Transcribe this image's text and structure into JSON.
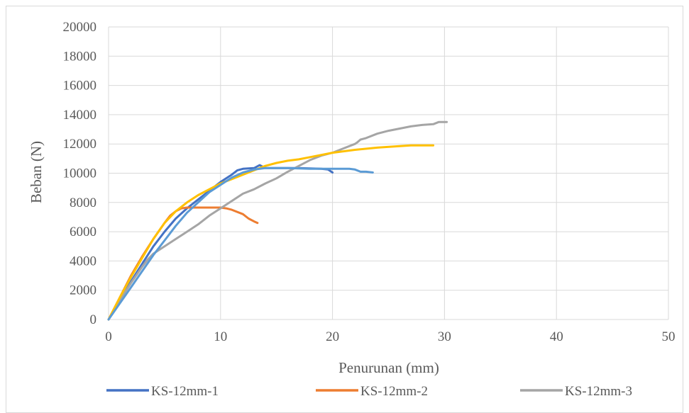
{
  "chart_data": {
    "type": "line",
    "title": "",
    "xlabel": "Penurunan (mm)",
    "ylabel": "Beban (N)",
    "xlim": [
      0,
      50
    ],
    "ylim": [
      0,
      20000
    ],
    "x_ticks": [
      0,
      10,
      20,
      30,
      40,
      50
    ],
    "y_ticks": [
      0,
      2000,
      4000,
      6000,
      8000,
      10000,
      12000,
      14000,
      16000,
      18000,
      20000
    ],
    "grid": true,
    "legend_position": "bottom",
    "series": [
      {
        "name": "KS-12mm-1",
        "color": "#4472c4",
        "x": [
          0,
          1,
          2,
          3,
          4,
          5,
          6,
          7,
          8,
          9,
          10,
          11,
          11.5,
          12,
          13,
          13.5,
          14,
          15,
          17,
          19,
          19.6,
          20
        ],
        "y": [
          0,
          1300,
          2600,
          3800,
          5000,
          6000,
          6900,
          7600,
          8200,
          8800,
          9400,
          9900,
          10200,
          10300,
          10350,
          10550,
          10350,
          10350,
          10350,
          10300,
          10250,
          10050
        ]
      },
      {
        "name": "KS-12mm-2",
        "color": "#ed7d31",
        "x": [
          0,
          1,
          2,
          3,
          4,
          5,
          5.5,
          6,
          6.5,
          7,
          8,
          9,
          10,
          10.5,
          11,
          12,
          12.5,
          13,
          13.3
        ],
        "y": [
          0,
          1500,
          3000,
          4300,
          5500,
          6600,
          7100,
          7400,
          7600,
          7650,
          7650,
          7650,
          7650,
          7600,
          7500,
          7200,
          6900,
          6700,
          6600
        ]
      },
      {
        "name": "KS-12mm-3",
        "color": "#a5a5a5",
        "x": [
          0,
          1,
          2,
          3,
          3.5,
          4,
          5,
          6,
          7,
          8,
          9,
          10,
          11,
          12,
          13,
          14,
          15,
          16,
          17,
          18,
          19,
          20,
          21,
          22,
          22.2,
          22.5,
          23,
          24,
          25,
          26,
          27,
          28,
          29,
          29.5,
          30.2
        ],
        "y": [
          0,
          1300,
          2500,
          3600,
          4100,
          4500,
          5000,
          5500,
          6000,
          6500,
          7100,
          7600,
          8100,
          8600,
          8900,
          9300,
          9650,
          10100,
          10500,
          10900,
          11200,
          11400,
          11700,
          12000,
          12100,
          12300,
          12400,
          12700,
          12900,
          13050,
          13200,
          13300,
          13350,
          13500,
          13500
        ]
      },
      {
        "name": "",
        "color": "#ffc000",
        "x": [
          0,
          1,
          2,
          3,
          4,
          5,
          6,
          7,
          8,
          9,
          10,
          11,
          12,
          13,
          14,
          15,
          16,
          17,
          18,
          19,
          20,
          22,
          24,
          26,
          27,
          28,
          29
        ],
        "y": [
          0,
          1500,
          2900,
          4200,
          5500,
          6600,
          7400,
          8000,
          8500,
          8900,
          9300,
          9600,
          9900,
          10200,
          10500,
          10700,
          10850,
          10950,
          11100,
          11250,
          11400,
          11600,
          11750,
          11850,
          11900,
          11900,
          11900
        ]
      },
      {
        "name": "",
        "color": "#5b9bd5",
        "x": [
          0,
          1,
          2,
          3,
          4,
          5,
          6,
          7,
          8,
          9,
          10,
          11,
          12,
          13,
          14,
          15,
          16,
          18,
          20,
          21,
          21.5,
          22,
          22.5,
          23,
          23.6
        ],
        "y": [
          0,
          1100,
          2200,
          3300,
          4400,
          5400,
          6400,
          7300,
          8000,
          8700,
          9200,
          9700,
          10050,
          10250,
          10350,
          10350,
          10350,
          10300,
          10300,
          10300,
          10300,
          10250,
          10100,
          10100,
          10050
        ]
      }
    ]
  }
}
